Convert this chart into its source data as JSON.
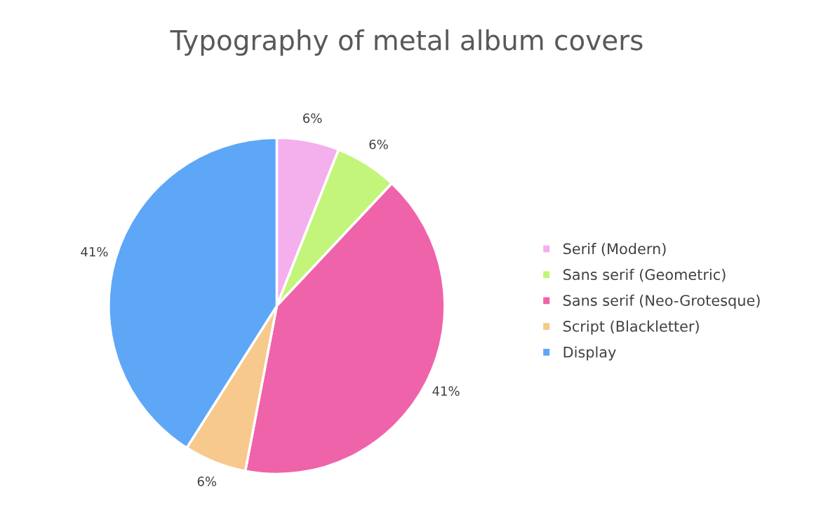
{
  "chart_data": {
    "type": "pie",
    "title": "Typography of metal album covers",
    "categories": [
      "Serif (Modern)",
      "Sans serif (Geometric)",
      "Sans serif (Neo-Grotesque)",
      "Script (Blackletter)",
      "Display"
    ],
    "values": [
      6,
      6,
      41,
      6,
      41
    ],
    "value_labels": [
      "6%",
      "6%",
      "41%",
      "6%",
      "41%"
    ],
    "colors": [
      "#f4b0ec",
      "#c3f57a",
      "#ef63aa",
      "#f7c98c",
      "#5ea7f7"
    ],
    "legend": "right"
  }
}
